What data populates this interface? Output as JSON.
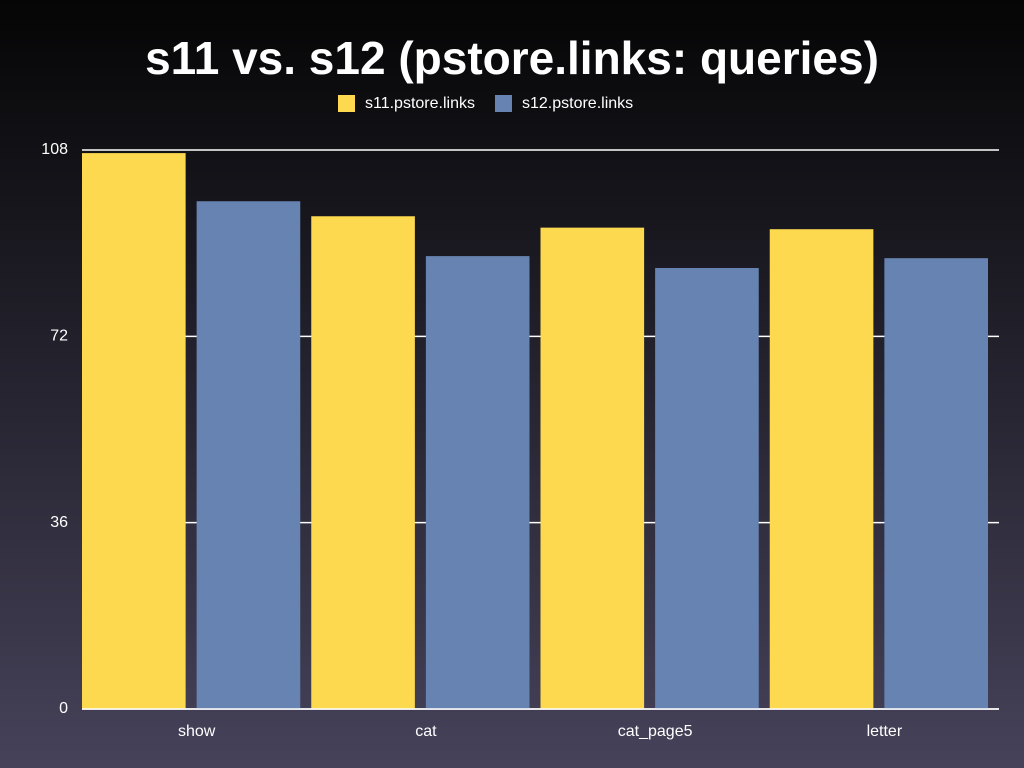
{
  "chart_data": {
    "type": "bar",
    "title": "s11 vs. s12 (pstore.links: queries)",
    "categories": [
      "show",
      "cat",
      "cat_page5",
      "letter"
    ],
    "series": [
      {
        "name": "s11.pstore.links",
        "color": "#fdd94f",
        "values": [
          107.4,
          95.2,
          93,
          92.7
        ]
      },
      {
        "name": "s12.pstore.links",
        "color": "#6783b2",
        "values": [
          98.1,
          87.5,
          85.2,
          87.1
        ]
      }
    ],
    "ylim": [
      0,
      108
    ],
    "yticks": [
      0,
      36,
      72,
      108
    ],
    "grid": true,
    "legend": "top"
  }
}
